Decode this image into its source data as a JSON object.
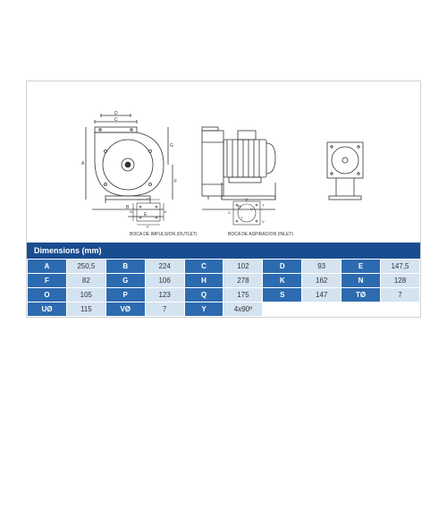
{
  "tableTitle": "Dimensions (mm)",
  "rows": [
    [
      {
        "l": "A",
        "v": "250,5"
      },
      {
        "l": "B",
        "v": "224"
      },
      {
        "l": "C",
        "v": "102"
      },
      {
        "l": "D",
        "v": "93"
      },
      {
        "l": "E",
        "v": "147,5"
      }
    ],
    [
      {
        "l": "F",
        "v": "82"
      },
      {
        "l": "G",
        "v": "106"
      },
      {
        "l": "H",
        "v": "278"
      },
      {
        "l": "K",
        "v": "162"
      },
      {
        "l": "N",
        "v": "128"
      }
    ],
    [
      {
        "l": "O",
        "v": "105"
      },
      {
        "l": "P",
        "v": "123"
      },
      {
        "l": "Q",
        "v": "175"
      },
      {
        "l": "S",
        "v": "147"
      },
      {
        "l": "TØ",
        "v": "7"
      }
    ],
    [
      {
        "l": "UØ",
        "v": "115"
      },
      {
        "l": "VØ",
        "v": "7"
      },
      {
        "l": "Y",
        "v": "4x90º"
      },
      {
        "l": "",
        "v": ""
      },
      {
        "l": "",
        "v": ""
      }
    ]
  ],
  "captions": {
    "outlet": "BOCA DE IMPULSION\n(OUTLET)",
    "inlet": "BOCA DE ASPIRACION\n(INLET)"
  },
  "dimLabels": {
    "front": [
      "D",
      "C",
      "B",
      "A",
      "G",
      "F",
      "E"
    ],
    "side": [
      "H"
    ],
    "outlet": [
      "O",
      "N",
      "P",
      "K"
    ],
    "inlet": [
      "Q",
      "S",
      "U",
      "V",
      "Y",
      "T"
    ]
  },
  "colors": {
    "headerBg": "#1a4d8f",
    "labelBg": "#2d6bb0",
    "valBg": "#d4e3f0",
    "stroke": "#333333",
    "dimLine": "#333333"
  }
}
